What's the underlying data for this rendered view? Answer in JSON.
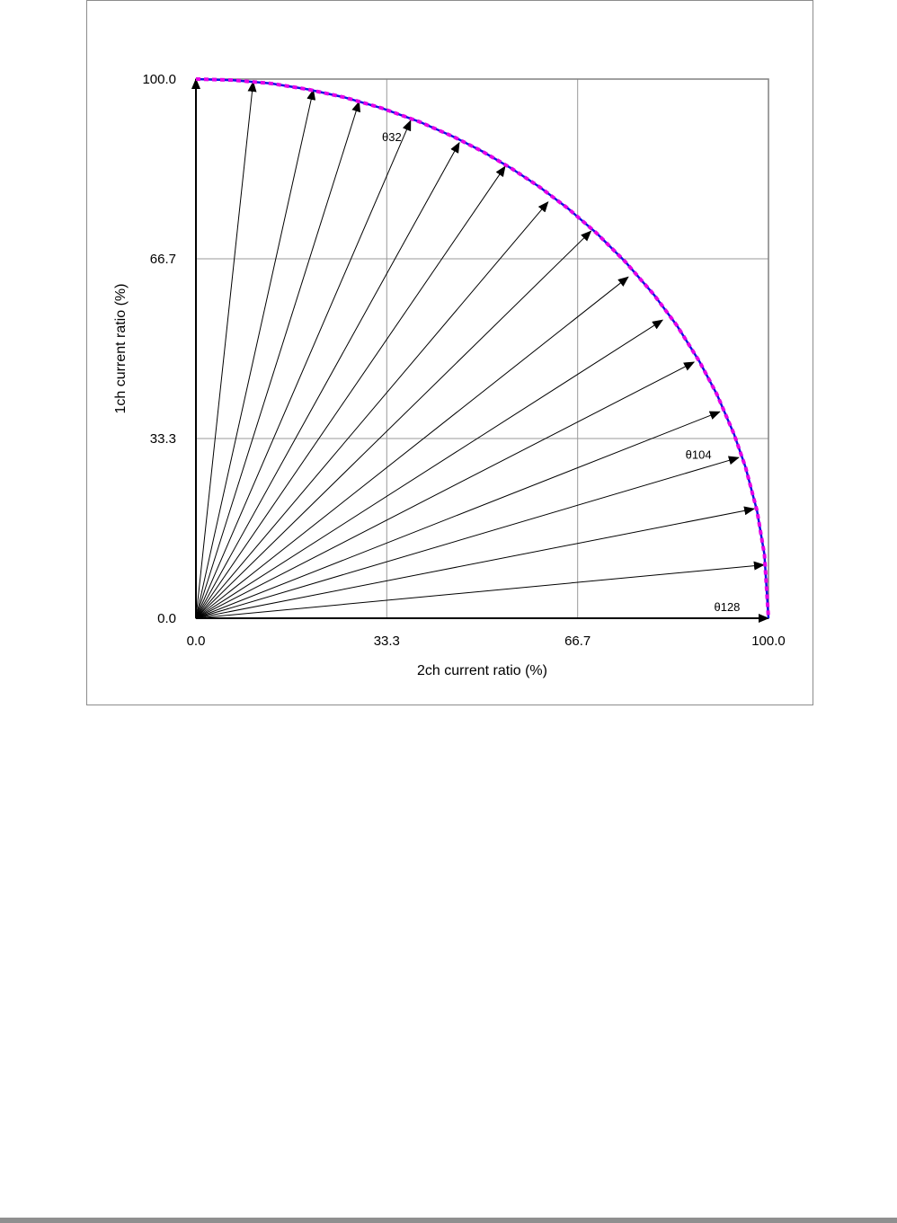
{
  "chart_data": {
    "type": "line",
    "title": "",
    "xlabel": "2ch current ratio (%)",
    "ylabel": "1ch current ratio (%)",
    "xlim": [
      0,
      100
    ],
    "ylim": [
      0,
      100
    ],
    "x_ticks": [
      "0.0",
      "33.3",
      "66.7",
      "100.0"
    ],
    "y_ticks": [
      "0.0",
      "33.3",
      "66.7",
      "100.0"
    ],
    "x_tick_values": [
      0,
      33.33,
      66.67,
      100
    ],
    "y_tick_values": [
      0,
      33.33,
      66.67,
      100
    ],
    "grid": true,
    "legend": "none",
    "series": [
      {
        "kind": "curve",
        "color": "#1010e0",
        "style": "solid",
        "points": [
          [
            0,
            100
          ],
          [
            6.5,
            99.8
          ],
          [
            13,
            99.2
          ],
          [
            19.5,
            98.1
          ],
          [
            26,
            96.6
          ],
          [
            32.5,
            94.6
          ],
          [
            39,
            92.1
          ],
          [
            45,
            89.3
          ],
          [
            50,
            86.6
          ],
          [
            55,
            83.5
          ],
          [
            60,
            80
          ],
          [
            65,
            76
          ],
          [
            70,
            71.4
          ],
          [
            75,
            66.1
          ],
          [
            80,
            60
          ],
          [
            84,
            54.3
          ],
          [
            88,
            47.5
          ],
          [
            91,
            41.5
          ],
          [
            94,
            34.1
          ],
          [
            96,
            28
          ],
          [
            98,
            19.9
          ],
          [
            99.3,
            11.8
          ],
          [
            100,
            0
          ]
        ]
      },
      {
        "kind": "dashed",
        "color": "#e600e6",
        "style": "dashed",
        "points": [
          [
            0,
            100
          ],
          [
            6.5,
            99.8
          ],
          [
            13,
            99.2
          ],
          [
            19.5,
            98.1
          ],
          [
            26,
            96.6
          ],
          [
            32.5,
            94.6
          ],
          [
            39,
            92.1
          ],
          [
            45,
            89.3
          ],
          [
            50,
            86.6
          ],
          [
            55,
            83.5
          ],
          [
            60,
            80
          ],
          [
            65,
            76
          ],
          [
            70,
            71.4
          ],
          [
            75,
            66.1
          ],
          [
            80,
            60
          ],
          [
            84,
            54.3
          ],
          [
            88,
            47.5
          ],
          [
            91,
            41.5
          ],
          [
            94,
            34.1
          ],
          [
            96,
            28
          ],
          [
            98,
            19.9
          ],
          [
            99.3,
            11.8
          ],
          [
            100,
            0
          ]
        ]
      }
    ],
    "vectors": [
      [
        0,
        100
      ],
      [
        10,
        99.5
      ],
      [
        20.5,
        98
      ],
      [
        28.5,
        95.8
      ],
      [
        37.5,
        92.3
      ],
      [
        46,
        88.2
      ],
      [
        54,
        83.8
      ],
      [
        61.5,
        77.2
      ],
      [
        69,
        71.8
      ],
      [
        75.5,
        63.3
      ],
      [
        81.5,
        55.3
      ],
      [
        87,
        47.5
      ],
      [
        91.5,
        38.3
      ],
      [
        94.8,
        29.8
      ],
      [
        97.5,
        20.3
      ],
      [
        99.2,
        9.9
      ],
      [
        100,
        0
      ]
    ],
    "annotations": [
      {
        "text": "θ32",
        "x": 32.5,
        "y": 88.5
      },
      {
        "text": "θ104",
        "x": 85.5,
        "y": 29.6
      },
      {
        "text": "θ128",
        "x": 90.5,
        "y": 1.3
      }
    ]
  }
}
